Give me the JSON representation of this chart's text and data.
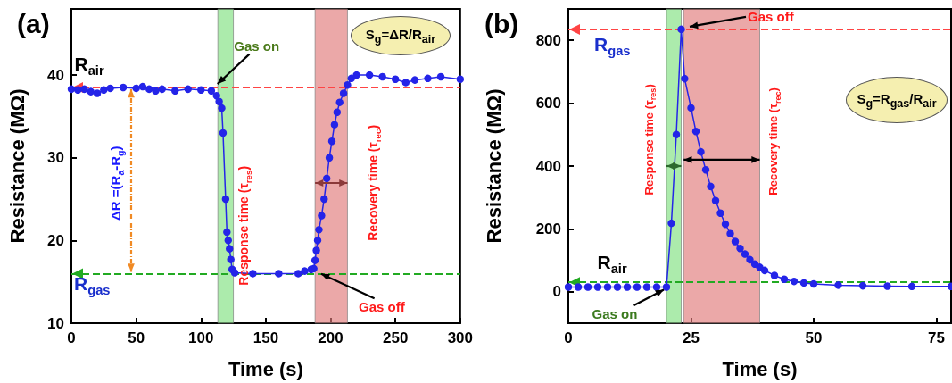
{
  "chart_data": [
    {
      "type": "line",
      "title": "(a)",
      "xlabel": "Time (s)",
      "ylabel": "Resistance (MΩ)",
      "xlim": [
        0,
        300
      ],
      "ylim": [
        10,
        48
      ],
      "xticks": [
        0,
        50,
        100,
        150,
        200,
        250,
        300
      ],
      "yticks": [
        10,
        20,
        30,
        40
      ],
      "marker": "circle",
      "line_style": "solid",
      "grid": false,
      "x": [
        0,
        5,
        10,
        15,
        20,
        25,
        30,
        40,
        50,
        55,
        60,
        65,
        70,
        80,
        90,
        100,
        108,
        112,
        114,
        116,
        117,
        119,
        120,
        121,
        122,
        123,
        124,
        126,
        140,
        160,
        175,
        180,
        185,
        187,
        188,
        189,
        190,
        191,
        193,
        195,
        197,
        199,
        201,
        203,
        205,
        207,
        210,
        213,
        216,
        220,
        230,
        240,
        250,
        258,
        265,
        275,
        285,
        300
      ],
      "series": [
        {
          "color": "#2424e8",
          "values": [
            38.3,
            38.2,
            38.3,
            38.0,
            37.8,
            38.2,
            38.4,
            38.5,
            38.4,
            38.6,
            38.3,
            38.1,
            38.3,
            38.1,
            38.3,
            38.2,
            38.1,
            37.5,
            36.8,
            36,
            33,
            25,
            21,
            20,
            19,
            17.7,
            16.5,
            16.1,
            16,
            16,
            16,
            16.3,
            16.5,
            16.6,
            17.6,
            18.8,
            20,
            21.3,
            23,
            25,
            27.5,
            30,
            32,
            34,
            35.5,
            36.7,
            37.8,
            38.8,
            39.6,
            40,
            40,
            39.8,
            39.5,
            39.1,
            39.4,
            39.6,
            39.8,
            39.5
          ]
        }
      ],
      "bands": [
        {
          "axis": "x",
          "from": 113,
          "to": 125,
          "color": "#7fe07f"
        },
        {
          "axis": "x",
          "from": 188,
          "to": 213,
          "color": "#e07a7a"
        }
      ],
      "ref_lines": [
        {
          "axis": "y",
          "value": 38.5,
          "color": "#ff4444",
          "line_style": "dashed"
        },
        {
          "axis": "y",
          "value": 16,
          "color": "#22aa22",
          "line_style": "dashed"
        }
      ],
      "annotations": [
        "R$_{air}$",
        "R$_{gas}$",
        "ΔR =(R$_{a}$-R$_{g}$)",
        {
          "text": "Gas on",
          "x": 110,
          "y": 38.6
        },
        "Response time (τ$_{res}$)",
        "Recovery time (τ$_{rec}$)",
        {
          "text": "Gas off",
          "x": 190,
          "y": 16.3
        },
        "S$_{g}$=ΔR/R$_{air}$"
      ]
    },
    {
      "type": "line",
      "title": "(b)",
      "xlabel": "Time (s)",
      "ylabel": "Resistance (MΩ)",
      "xlim": [
        0,
        78
      ],
      "ylim": [
        -100,
        900
      ],
      "xticks": [
        0,
        25,
        50,
        75
      ],
      "yticks": [
        0,
        200,
        400,
        600,
        800
      ],
      "marker": "circle",
      "line_style": "solid",
      "grid": false,
      "x": [
        0,
        2,
        4,
        6,
        8,
        10,
        12,
        14,
        16,
        18,
        20,
        21,
        22,
        23,
        23.7,
        25,
        26,
        27,
        28,
        29,
        30,
        31,
        32,
        33,
        34,
        35,
        36,
        37,
        38,
        39,
        40,
        42,
        44,
        46,
        48,
        50,
        55,
        60,
        65,
        70,
        78
      ],
      "series": [
        {
          "color": "#2424e8",
          "values": [
            15,
            15,
            15,
            15,
            15,
            15,
            15,
            15,
            15,
            15,
            15,
            218,
            500,
            835,
            678,
            585,
            510,
            445,
            388,
            335,
            290,
            250,
            215,
            185,
            160,
            138,
            120,
            102,
            88,
            78,
            68,
            52,
            40,
            33,
            28,
            25,
            21,
            19,
            18,
            17,
            17
          ]
        }
      ],
      "bands": [
        {
          "axis": "x",
          "from": 20,
          "to": 23,
          "color": "#7fe07f"
        },
        {
          "axis": "x",
          "from": 23.5,
          "to": 39,
          "color": "#e07a7a"
        }
      ],
      "ref_lines": [
        {
          "axis": "y",
          "value": 835,
          "color": "#ff4444",
          "line_style": "dashed"
        },
        {
          "axis": "y",
          "value": 30,
          "color": "#22aa22",
          "line_style": "dashed"
        }
      ],
      "annotations": [
        "R$_{gas}$",
        "R$_{air}$",
        {
          "text": "Gas on",
          "x": 20,
          "y": 15
        },
        {
          "text": "Gas off",
          "x": 24,
          "y": 835
        },
        "Response time (τ$_{res}$)",
        {
          "text": "Recovery time (τ$_{rec}$)",
          "x": 39,
          "y": 420
        },
        "S$_{g}$=R$_{gas}$/R$_{air}$"
      ]
    }
  ]
}
